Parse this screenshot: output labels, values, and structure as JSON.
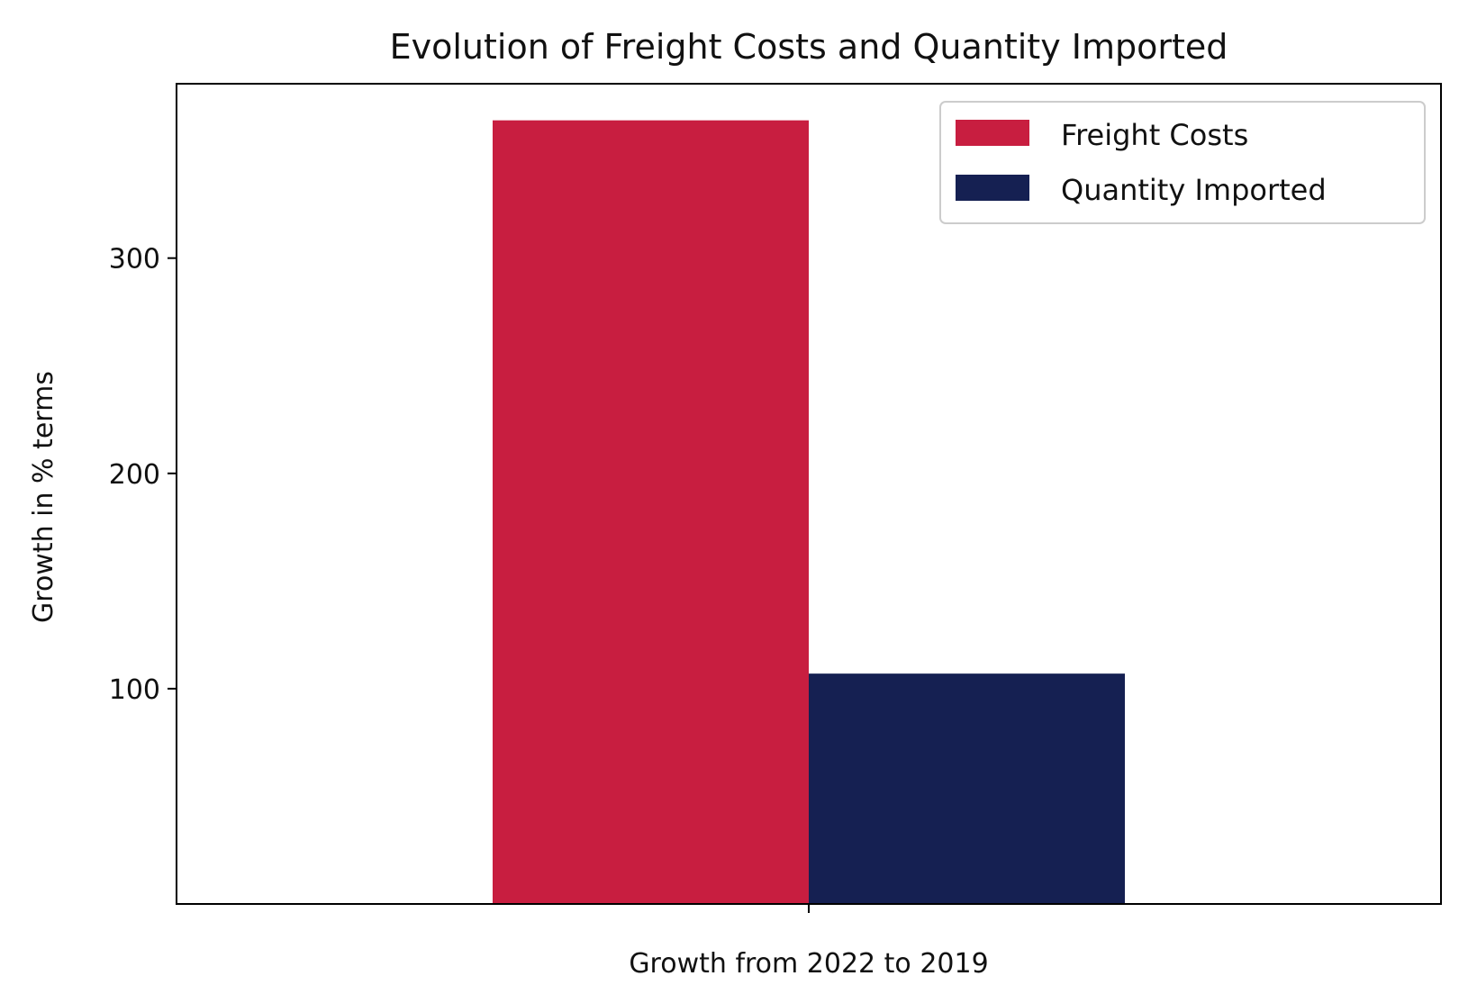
{
  "chart_data": {
    "type": "bar",
    "title": "Evolution of Freight Costs and Quantity Imported",
    "xlabel": "",
    "ylabel": "Growth in % terms",
    "categories": [
      "Growth from 2022 to 2019"
    ],
    "series": [
      {
        "name": "Freight Costs",
        "color": "#C81E40",
        "values": [
          364
        ]
      },
      {
        "name": "Quantity Imported",
        "color": "#152052",
        "values": [
          107
        ]
      }
    ],
    "yticks": [
      100,
      200,
      300
    ],
    "ylim": [
      0,
      381
    ],
    "grid": false,
    "legend": "top-right"
  }
}
